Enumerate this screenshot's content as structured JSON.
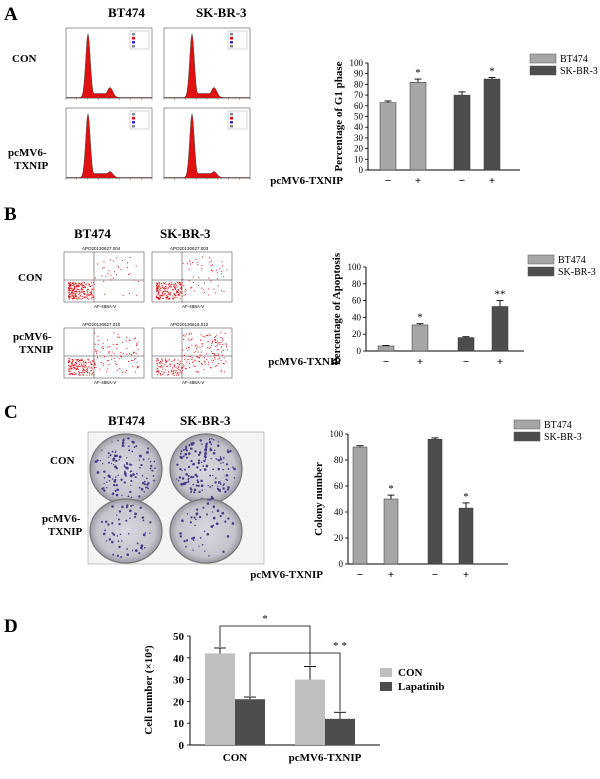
{
  "panels": {
    "A": {
      "letter": "A",
      "col1": "BT474",
      "col2": "SK-BR-3",
      "row1": "CON",
      "row2a": "pcMV6-",
      "row2b": "TXNIP"
    },
    "B": {
      "letter": "B",
      "col1": "BT474",
      "col2": "SK-BR-3",
      "row1": "CON",
      "row2a": "pcMV6-",
      "row2b": "TXNIP"
    },
    "C": {
      "letter": "C",
      "col1": "BT474",
      "col2": "SK-BR-3",
      "row1": "CON",
      "row2a": "pcMV6-",
      "row2b": "TXNIP"
    },
    "D": {
      "letter": "D"
    }
  },
  "flow_labels": {
    "B_tl": "APO20130627.004",
    "B_tr": "APO20130627.003",
    "B_bl": "APO20130627.010",
    "B_br": "APO20130616.012",
    "annexin": "AF-488A-V"
  },
  "chart_data": [
    {
      "id": "A",
      "type": "bar",
      "ylabel": "Percentage of G1 phase",
      "ylim": [
        0,
        100
      ],
      "yticks": [
        0,
        10,
        20,
        30,
        40,
        50,
        60,
        70,
        80,
        90,
        100
      ],
      "row_label": "pcMV6-TXNIP",
      "x_tick_labels": [
        "−",
        "+",
        "−",
        "+"
      ],
      "series": [
        {
          "name": "BT474",
          "color": "#a6a6a6",
          "values": [
            63,
            82
          ],
          "errors": [
            1.5,
            3
          ]
        },
        {
          "name": "SK-BR-3",
          "color": "#4d4d4d",
          "values": [
            70,
            85
          ],
          "errors": [
            3,
            1.5
          ]
        }
      ],
      "stars": [
        "",
        "*",
        "",
        "*"
      ]
    },
    {
      "id": "B",
      "type": "bar",
      "ylabel": "Percentage of Apoptosis",
      "ylim": [
        0,
        100
      ],
      "yticks": [
        0,
        20,
        40,
        60,
        80,
        100
      ],
      "row_label": "pcMV6-TXNIP",
      "x_tick_labels": [
        "−",
        "+",
        "−",
        "+"
      ],
      "series": [
        {
          "name": "BT474",
          "color": "#a6a6a6",
          "values": [
            6,
            31
          ],
          "errors": [
            0.5,
            1.5
          ]
        },
        {
          "name": "SK-BR-3",
          "color": "#4d4d4d",
          "values": [
            16,
            53
          ],
          "errors": [
            1,
            7
          ]
        }
      ],
      "stars": [
        "",
        "*",
        "",
        "**"
      ]
    },
    {
      "id": "C",
      "type": "bar",
      "ylabel": "Colony  number",
      "ylim": [
        0,
        100
      ],
      "yticks": [
        0,
        20,
        40,
        60,
        80,
        100
      ],
      "row_label": "pcMV6-TXNIP",
      "x_tick_labels": [
        "−",
        "+",
        "−",
        "+"
      ],
      "series": [
        {
          "name": "BT474",
          "color": "#a6a6a6",
          "values": [
            90,
            50
          ],
          "errors": [
            1,
            3
          ]
        },
        {
          "name": "SK-BR-3",
          "color": "#4d4d4d",
          "values": [
            96,
            43
          ],
          "errors": [
            1,
            4
          ]
        }
      ],
      "stars": [
        "",
        "*",
        "",
        "*"
      ]
    },
    {
      "id": "D",
      "type": "bar",
      "ylabel": "Cell number (×10⁴)",
      "ylim": [
        0,
        50
      ],
      "yticks": [
        0,
        10,
        20,
        30,
        40,
        50
      ],
      "categories": [
        "CON",
        "pcMV6-TXNIP"
      ],
      "series": [
        {
          "name": "CON",
          "color": "#bfbfbf",
          "values": [
            42,
            30
          ],
          "errors": [
            2.5,
            6
          ]
        },
        {
          "name": "Lapatinib",
          "color": "#4d4d4d",
          "values": [
            21,
            12
          ],
          "errors": [
            1,
            3
          ]
        }
      ],
      "brackets": [
        {
          "label": "*"
        },
        {
          "label": "* *"
        }
      ]
    }
  ]
}
